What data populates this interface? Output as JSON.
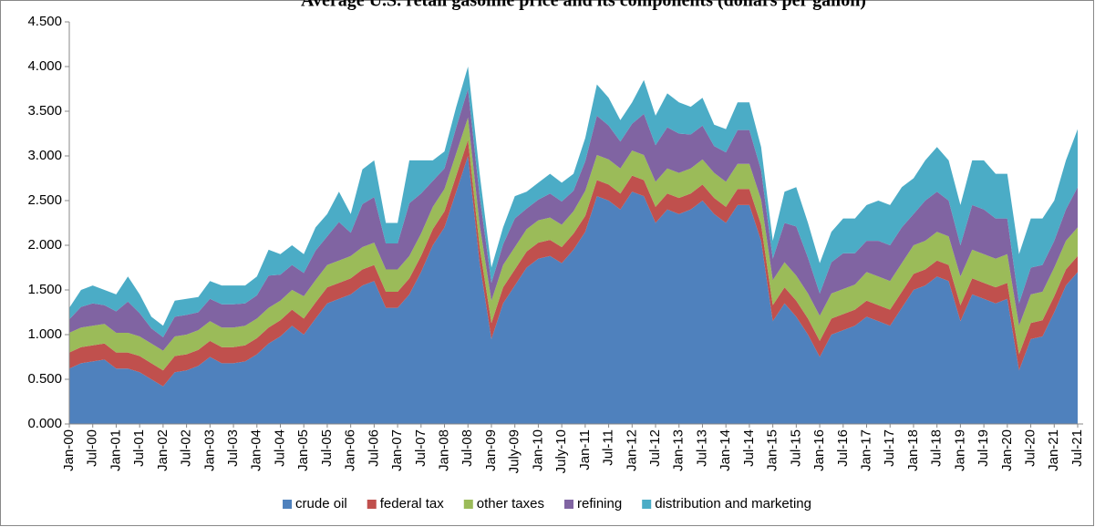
{
  "chart_data": {
    "type": "stacked_area",
    "title": "Average U.S. retail gasoline price and its components (dollars per gallon)",
    "categories": [
      "Jan-00",
      null,
      "Jul-00",
      null,
      "Jan-01",
      null,
      "Jul-01",
      null,
      "Jan-02",
      null,
      "Jul-02",
      null,
      "Jan-03",
      null,
      "Jul-03",
      null,
      "Jan-04",
      null,
      "Jul-04",
      null,
      "Jan-05",
      null,
      "Jul-05",
      null,
      "Jan-06",
      null,
      "Jul-06",
      null,
      "Jan-07",
      null,
      "Jul-07",
      null,
      "Jan-08",
      null,
      "Jul-08",
      null,
      "Jan-09",
      null,
      "July-09",
      null,
      "Jan-10",
      null,
      "July-10",
      null,
      "Jan-11",
      null,
      "Jul-11",
      null,
      "Jan-12",
      null,
      "Jul-12",
      null,
      "Jan-13",
      null,
      "Jul-13",
      null,
      "Jan-14",
      null,
      "Jul-14",
      null,
      "Jan-15",
      null,
      "Jul-15",
      null,
      "Jan-16",
      null,
      "Jul-16",
      null,
      "Jan-17",
      null,
      "Jul-17",
      null,
      "Jan-18",
      null,
      "Jul-18",
      null,
      "Jan-19",
      null,
      "Jul-19",
      null,
      "Jan-20",
      null,
      "Jul-20",
      null,
      "Jan-21",
      null,
      "Jul-21"
    ],
    "series": [
      {
        "name": "crude oil",
        "color": "#4f81bd",
        "values": [
          0.62,
          0.68,
          0.7,
          0.72,
          0.62,
          0.62,
          0.58,
          0.5,
          0.42,
          0.58,
          0.6,
          0.65,
          0.75,
          0.68,
          0.68,
          0.7,
          0.78,
          0.9,
          0.98,
          1.1,
          1.0,
          1.18,
          1.35,
          1.4,
          1.45,
          1.55,
          1.6,
          1.3,
          1.3,
          1.45,
          1.7,
          2.0,
          2.2,
          2.6,
          3.0,
          1.8,
          0.95,
          1.35,
          1.55,
          1.75,
          1.85,
          1.88,
          1.8,
          1.95,
          2.15,
          2.55,
          2.5,
          2.4,
          2.6,
          2.55,
          2.25,
          2.4,
          2.35,
          2.4,
          2.5,
          2.35,
          2.25,
          2.45,
          2.45,
          2.05,
          1.15,
          1.35,
          1.2,
          1.0,
          0.75,
          1.0,
          1.05,
          1.1,
          1.2,
          1.15,
          1.1,
          1.3,
          1.5,
          1.55,
          1.65,
          1.6,
          1.15,
          1.45,
          1.4,
          1.35,
          1.4,
          0.6,
          0.95,
          0.98,
          1.25,
          1.55,
          1.7
        ]
      },
      {
        "name": "federal tax",
        "color": "#c0504d",
        "values": [
          0.18,
          0.18,
          0.18,
          0.18,
          0.18,
          0.18,
          0.18,
          0.18,
          0.18,
          0.18,
          0.18,
          0.18,
          0.18,
          0.18,
          0.18,
          0.18,
          0.18,
          0.18,
          0.18,
          0.18,
          0.18,
          0.18,
          0.18,
          0.18,
          0.18,
          0.18,
          0.18,
          0.18,
          0.18,
          0.18,
          0.18,
          0.18,
          0.18,
          0.18,
          0.18,
          0.18,
          0.18,
          0.18,
          0.18,
          0.18,
          0.18,
          0.18,
          0.18,
          0.18,
          0.18,
          0.18,
          0.18,
          0.18,
          0.18,
          0.18,
          0.18,
          0.18,
          0.18,
          0.18,
          0.18,
          0.18,
          0.18,
          0.18,
          0.18,
          0.18,
          0.18,
          0.18,
          0.18,
          0.18,
          0.18,
          0.18,
          0.18,
          0.18,
          0.18,
          0.18,
          0.18,
          0.18,
          0.18,
          0.18,
          0.18,
          0.18,
          0.18,
          0.18,
          0.18,
          0.18,
          0.18,
          0.18,
          0.18,
          0.18,
          0.18,
          0.18,
          0.18
        ]
      },
      {
        "name": "other taxes",
        "color": "#9bbb59",
        "values": [
          0.22,
          0.22,
          0.22,
          0.22,
          0.22,
          0.22,
          0.22,
          0.22,
          0.22,
          0.22,
          0.22,
          0.22,
          0.22,
          0.22,
          0.22,
          0.22,
          0.22,
          0.22,
          0.22,
          0.22,
          0.25,
          0.25,
          0.25,
          0.25,
          0.25,
          0.25,
          0.25,
          0.25,
          0.25,
          0.25,
          0.25,
          0.25,
          0.25,
          0.25,
          0.25,
          0.25,
          0.25,
          0.25,
          0.25,
          0.25,
          0.25,
          0.25,
          0.25,
          0.25,
          0.28,
          0.28,
          0.28,
          0.28,
          0.28,
          0.28,
          0.28,
          0.28,
          0.28,
          0.28,
          0.28,
          0.28,
          0.28,
          0.28,
          0.28,
          0.28,
          0.28,
          0.28,
          0.28,
          0.28,
          0.28,
          0.28,
          0.28,
          0.28,
          0.32,
          0.32,
          0.32,
          0.32,
          0.32,
          0.32,
          0.32,
          0.32,
          0.32,
          0.32,
          0.32,
          0.32,
          0.32,
          0.32,
          0.32,
          0.32,
          0.32,
          0.32,
          0.32
        ]
      },
      {
        "name": "refining",
        "color": "#8064a2",
        "values": [
          0.15,
          0.23,
          0.25,
          0.21,
          0.24,
          0.35,
          0.26,
          0.17,
          0.15,
          0.22,
          0.22,
          0.2,
          0.25,
          0.26,
          0.26,
          0.25,
          0.26,
          0.36,
          0.29,
          0.28,
          0.26,
          0.33,
          0.32,
          0.43,
          0.26,
          0.48,
          0.51,
          0.29,
          0.29,
          0.59,
          0.45,
          0.29,
          0.23,
          0.29,
          0.32,
          0.32,
          0.2,
          0.23,
          0.32,
          0.23,
          0.23,
          0.27,
          0.26,
          0.23,
          0.33,
          0.44,
          0.38,
          0.3,
          0.3,
          0.46,
          0.41,
          0.46,
          0.44,
          0.38,
          0.38,
          0.3,
          0.33,
          0.38,
          0.38,
          0.33,
          0.24,
          0.44,
          0.55,
          0.4,
          0.25,
          0.35,
          0.4,
          0.35,
          0.35,
          0.4,
          0.4,
          0.4,
          0.35,
          0.45,
          0.45,
          0.4,
          0.35,
          0.5,
          0.5,
          0.45,
          0.4,
          0.25,
          0.3,
          0.3,
          0.3,
          0.35,
          0.45
        ]
      },
      {
        "name": "distribution and marketing",
        "color": "#4bacc6",
        "values": [
          0.13,
          0.19,
          0.2,
          0.17,
          0.19,
          0.28,
          0.21,
          0.13,
          0.13,
          0.18,
          0.18,
          0.17,
          0.2,
          0.21,
          0.21,
          0.2,
          0.21,
          0.29,
          0.23,
          0.22,
          0.21,
          0.26,
          0.25,
          0.34,
          0.21,
          0.39,
          0.41,
          0.23,
          0.23,
          0.48,
          0.37,
          0.23,
          0.19,
          0.23,
          0.25,
          0.25,
          0.17,
          0.19,
          0.25,
          0.19,
          0.19,
          0.22,
          0.21,
          0.19,
          0.26,
          0.35,
          0.31,
          0.24,
          0.24,
          0.38,
          0.33,
          0.38,
          0.35,
          0.31,
          0.31,
          0.24,
          0.26,
          0.31,
          0.31,
          0.26,
          0.2,
          0.35,
          0.44,
          0.39,
          0.34,
          0.34,
          0.39,
          0.39,
          0.4,
          0.45,
          0.45,
          0.45,
          0.4,
          0.45,
          0.5,
          0.45,
          0.45,
          0.5,
          0.55,
          0.5,
          0.5,
          0.55,
          0.55,
          0.52,
          0.45,
          0.55,
          0.65
        ]
      }
    ],
    "ylim": [
      0,
      4.5
    ],
    "yticks": [
      {
        "value": 0,
        "label": "0.000"
      },
      {
        "value": 0.5,
        "label": "0.500"
      },
      {
        "value": 1,
        "label": "1.000"
      },
      {
        "value": 1.5,
        "label": "1.500"
      },
      {
        "value": 2,
        "label": "2.000"
      },
      {
        "value": 2.5,
        "label": "2.500"
      },
      {
        "value": 3,
        "label": "3.000"
      },
      {
        "value": 3.5,
        "label": "3.500"
      },
      {
        "value": 4,
        "label": "4.000"
      },
      {
        "value": 4.5,
        "label": "4.500"
      }
    ],
    "grid": false,
    "legend": "bottom"
  }
}
